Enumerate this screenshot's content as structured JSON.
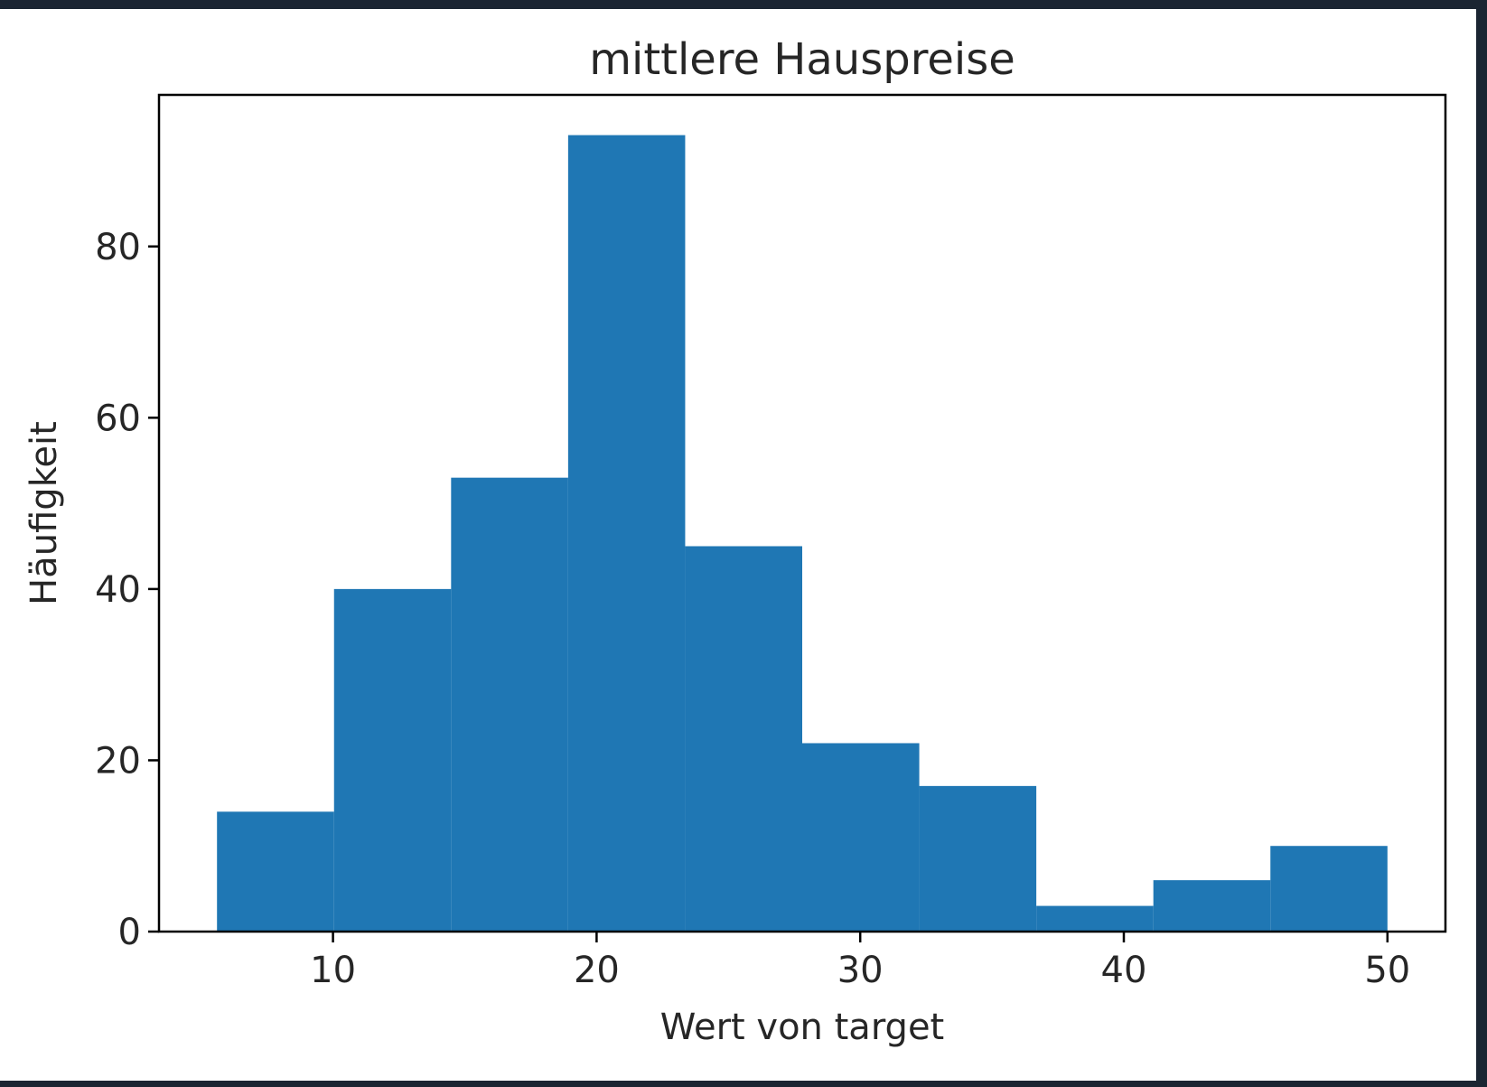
{
  "chart_data": {
    "type": "bar",
    "subtype": "histogram",
    "title": "mittlere Hauspreise",
    "xlabel": "Wert von target",
    "ylabel": "Häufigkeit",
    "bin_edges": [
      5.6,
      10.04,
      14.48,
      18.92,
      23.36,
      27.8,
      32.24,
      36.68,
      41.12,
      45.56,
      50.0
    ],
    "counts": [
      14,
      40,
      53,
      93,
      45,
      22,
      17,
      3,
      6,
      10
    ],
    "xlim": [
      3.4,
      52.2
    ],
    "ylim": [
      0,
      97.7
    ],
    "xticks": [
      10,
      20,
      30,
      40,
      50
    ],
    "yticks": [
      0,
      20,
      40,
      60,
      80
    ],
    "bar_color": "#1f77b4",
    "grid": false
  }
}
